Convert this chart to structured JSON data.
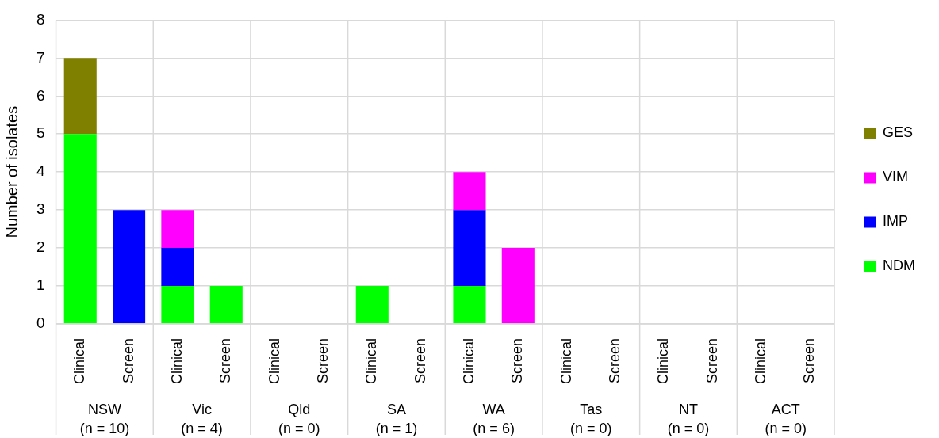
{
  "chart_data": {
    "type": "bar",
    "ylabel": "Number of isolates",
    "stacked": true,
    "legend": "right",
    "grid": true,
    "categories": [
      "Clinical",
      "Screen",
      "Clinical",
      "Screen",
      "Clinical",
      "Screen",
      "Clinical",
      "Screen",
      "Clinical",
      "Screen",
      "Clinical",
      "Screen",
      "Clinical",
      "Screen",
      "Clinical",
      "Screen"
    ],
    "annotations": [
      "NSW\n(n = 10)",
      "Vic\n(n = 4)",
      "Qld\n(n = 0)",
      "SA\n(n = 1)",
      "WA\n(n = 6)",
      "Tas\n(n = 0)",
      "NT\n(n = 0)",
      "ACT\n(n = 0)"
    ],
    "ylim": [
      0,
      8
    ],
    "yticks": [
      0,
      1,
      2,
      3,
      4,
      5,
      6,
      7,
      8
    ],
    "series": [
      {
        "name": "NDM",
        "color": "#00ff00",
        "values": [
          5,
          0,
          1,
          1,
          0,
          0,
          1,
          0,
          1,
          0,
          0,
          0,
          0,
          0,
          0,
          0
        ]
      },
      {
        "name": "IMP",
        "color": "#0000ff",
        "values": [
          0,
          3,
          1,
          0,
          0,
          0,
          0,
          0,
          2,
          0,
          0,
          0,
          0,
          0,
          0,
          0
        ]
      },
      {
        "name": "VIM",
        "color": "#ff00ff",
        "values": [
          0,
          0,
          1,
          0,
          0,
          0,
          0,
          0,
          1,
          2,
          0,
          0,
          0,
          0,
          0,
          0
        ]
      },
      {
        "name": "GES",
        "color": "#808000",
        "values": [
          2,
          0,
          0,
          0,
          0,
          0,
          0,
          0,
          0,
          0,
          0,
          0,
          0,
          0,
          0,
          0
        ]
      }
    ]
  }
}
